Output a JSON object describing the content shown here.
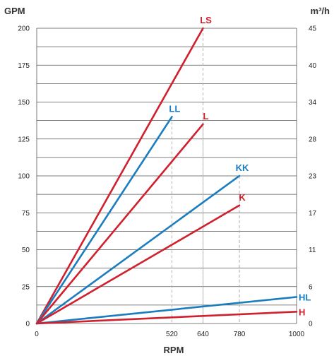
{
  "chart_data": {
    "type": "line",
    "xlabel": "RPM",
    "ylabel": "GPM",
    "y2label": "m³/h",
    "xlim": [
      0,
      1000
    ],
    "ylim": [
      0,
      200
    ],
    "x_ticks": [
      0,
      520,
      640,
      780,
      1000
    ],
    "y_ticks": [
      0,
      25,
      50,
      75,
      100,
      125,
      150,
      175,
      200
    ],
    "y2_ticks": [
      "0",
      "6",
      "11",
      "17",
      "23",
      "28",
      "34",
      "40",
      "45"
    ],
    "grid": true,
    "colors": {
      "red": "#d0202e",
      "blue": "#1a7dc0"
    },
    "series": [
      {
        "name": "LS",
        "color": "#d0202e",
        "x": [
          0,
          640
        ],
        "y": [
          0,
          200
        ]
      },
      {
        "name": "LL",
        "color": "#1a7dc0",
        "x": [
          0,
          520
        ],
        "y": [
          0,
          140
        ]
      },
      {
        "name": "L",
        "color": "#d0202e",
        "x": [
          0,
          640
        ],
        "y": [
          0,
          135
        ]
      },
      {
        "name": "KK",
        "color": "#1a7dc0",
        "x": [
          0,
          780
        ],
        "y": [
          0,
          100
        ]
      },
      {
        "name": "K",
        "color": "#d0202e",
        "x": [
          0,
          780
        ],
        "y": [
          0,
          80
        ]
      },
      {
        "name": "HL",
        "color": "#1a7dc0",
        "x": [
          0,
          1000
        ],
        "y": [
          0,
          18
        ]
      },
      {
        "name": "H",
        "color": "#d0202e",
        "x": [
          0,
          1000
        ],
        "y": [
          0,
          8
        ]
      }
    ]
  }
}
